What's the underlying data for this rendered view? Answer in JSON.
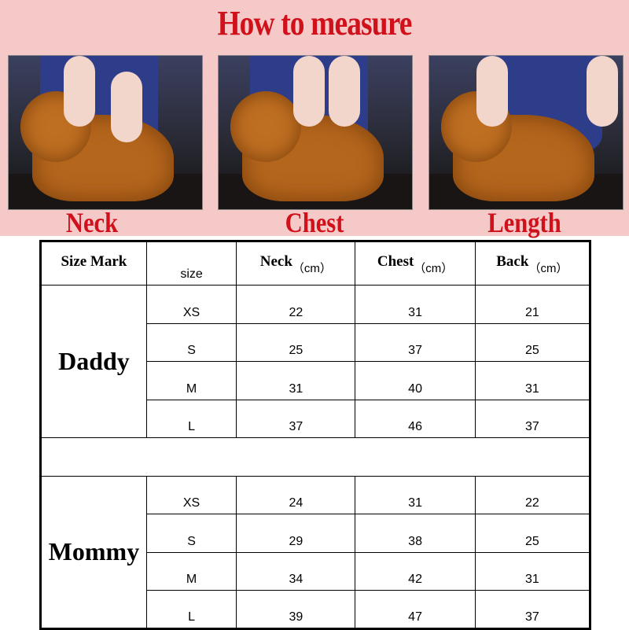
{
  "header": {
    "title": "How to measure"
  },
  "photos": [
    {
      "caption": "Neck"
    },
    {
      "caption": "Chest"
    },
    {
      "caption": "Length"
    }
  ],
  "table": {
    "columns": {
      "size_mark": "Size Mark",
      "size": "size",
      "neck": "Neck",
      "chest": "Chest",
      "back": "Back",
      "unit": "（cm）"
    },
    "groups": [
      {
        "label": "Daddy",
        "rows": [
          {
            "size": "XS",
            "neck": "22",
            "chest": "31",
            "back": "21"
          },
          {
            "size": "S",
            "neck": "25",
            "chest": "37",
            "back": "25"
          },
          {
            "size": "M",
            "neck": "31",
            "chest": "40",
            "back": "31"
          },
          {
            "size": "L",
            "neck": "37",
            "chest": "46",
            "back": "37"
          }
        ]
      },
      {
        "label": "Mommy",
        "rows": [
          {
            "size": "XS",
            "neck": "24",
            "chest": "31",
            "back": "22"
          },
          {
            "size": "S",
            "neck": "29",
            "chest": "38",
            "back": "25"
          },
          {
            "size": "M",
            "neck": "34",
            "chest": "42",
            "back": "31"
          },
          {
            "size": "L",
            "neck": "39",
            "chest": "47",
            "back": "37"
          }
        ]
      }
    ]
  },
  "colors": {
    "background_top": "#f5c9c8",
    "title_red": "#d0101a"
  }
}
